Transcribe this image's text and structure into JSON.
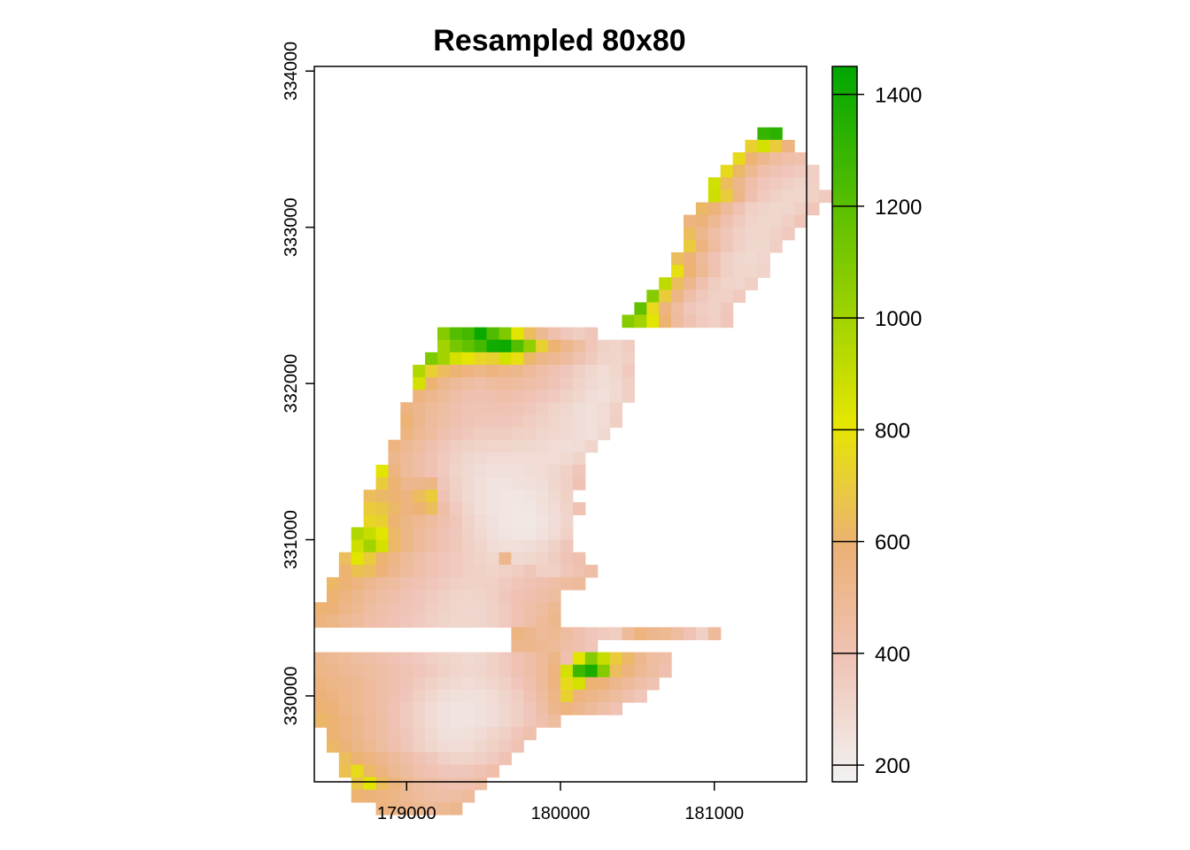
{
  "chart_data": {
    "type": "heatmap",
    "title": "Resampled 80x80",
    "xlabel": "",
    "ylabel": "",
    "xlim": [
      178400,
      181600
    ],
    "ylim": [
      329450,
      334030
    ],
    "x_ticks": [
      179000,
      180000,
      181000
    ],
    "x_tick_labels": [
      "179000",
      "180000",
      "181000"
    ],
    "y_ticks": [
      330000,
      331000,
      332000,
      333000,
      334000
    ],
    "y_tick_labels": [
      "330000",
      "331000",
      "332000",
      "333000",
      "334000"
    ],
    "cell_size": 80,
    "grid_origin": [
      178400,
      333640
    ],
    "rows": [
      {
        "c0": 36,
        "v": [
          1300,
          1330
        ]
      },
      {
        "c0": 35,
        "v": [
          720,
          860,
          700,
          560
        ]
      },
      {
        "c0": 34,
        "v": [
          760,
          600,
          520,
          460,
          430,
          420
        ]
      },
      {
        "c0": 33,
        "v": [
          760,
          620,
          500,
          430,
          400,
          380,
          360,
          340
        ]
      },
      {
        "c0": 32,
        "v": [
          870,
          640,
          520,
          430,
          380,
          360,
          340,
          320,
          340
        ]
      },
      {
        "c0": 32,
        "v": [
          880,
          700,
          540,
          420,
          360,
          330,
          310,
          300,
          330,
          360
        ]
      },
      {
        "c0": 31,
        "v": [
          620,
          580,
          480,
          400,
          340,
          320,
          300,
          310,
          340,
          380
        ]
      },
      {
        "c0": 30,
        "v": [
          560,
          580,
          500,
          420,
          360,
          320,
          300,
          310,
          340,
          380
        ]
      },
      {
        "c0": 30,
        "v": [
          640,
          520,
          440,
          380,
          340,
          310,
          310,
          330,
          360
        ]
      },
      {
        "c0": 30,
        "v": [
          700,
          560,
          460,
          380,
          330,
          300,
          300,
          340
        ]
      },
      {
        "c0": 29,
        "v": [
          640,
          580,
          480,
          400,
          340,
          300,
          290,
          310
        ]
      },
      {
        "c0": 29,
        "v": [
          780,
          600,
          500,
          410,
          340,
          310,
          300,
          320
        ]
      },
      {
        "c0": 28,
        "v": [
          920,
          640,
          520,
          420,
          350,
          320,
          310,
          340
        ]
      },
      {
        "c0": 27,
        "v": [
          1080,
          700,
          540,
          440,
          370,
          340,
          330,
          360
        ]
      },
      {
        "c0": 26,
        "v": [
          1180,
          760,
          560,
          460,
          380,
          350,
          330,
          370
        ]
      },
      {
        "c0": 25,
        "v": [
          1080,
          1000,
          820,
          600,
          470,
          400,
          360,
          340,
          380
        ]
      },
      {
        "c0": 10,
        "v": [
          1080,
          1220,
          1260,
          1420,
          1230,
          1100,
          820,
          640,
          500,
          420,
          370,
          350,
          380
        ]
      },
      {
        "c0": 10,
        "v": [
          1000,
          1120,
          1180,
          1260,
          1400,
          1410,
          1220,
          1040,
          720,
          600,
          520,
          460,
          380,
          330,
          320,
          350
        ]
      },
      {
        "c0": 9,
        "v": [
          1100,
          1000,
          860,
          800,
          740,
          720,
          860,
          780,
          620,
          540,
          500,
          460,
          410,
          360,
          320,
          310,
          340
        ]
      },
      {
        "c0": 8,
        "v": [
          960,
          720,
          640,
          600,
          560,
          540,
          560,
          540,
          520,
          480,
          440,
          410,
          380,
          340,
          300,
          280,
          300,
          360
        ]
      },
      {
        "c0": 8,
        "v": [
          860,
          600,
          520,
          480,
          460,
          440,
          460,
          470,
          460,
          440,
          420,
          390,
          360,
          320,
          290,
          270,
          290,
          340
        ]
      },
      {
        "c0": 8,
        "v": [
          560,
          520,
          480,
          440,
          420,
          410,
          420,
          430,
          420,
          400,
          380,
          360,
          330,
          300,
          270,
          260,
          290,
          340
        ]
      },
      {
        "c0": 7,
        "v": [
          560,
          520,
          480,
          450,
          420,
          400,
          390,
          400,
          400,
          390,
          370,
          350,
          320,
          300,
          270,
          260,
          280,
          330
        ]
      },
      {
        "c0": 7,
        "v": [
          600,
          520,
          470,
          440,
          410,
          390,
          380,
          380,
          380,
          370,
          350,
          330,
          310,
          290,
          270,
          260,
          280,
          340
        ]
      },
      {
        "c0": 7,
        "v": [
          560,
          500,
          460,
          420,
          390,
          370,
          350,
          350,
          350,
          340,
          330,
          310,
          300,
          290,
          270,
          260,
          290
        ]
      },
      {
        "c0": 6,
        "v": [
          560,
          500,
          460,
          420,
          380,
          350,
          330,
          320,
          310,
          310,
          300,
          300,
          290,
          280,
          270,
          280,
          310
        ]
      },
      {
        "c0": 6,
        "v": [
          520,
          480,
          440,
          400,
          360,
          330,
          300,
          290,
          280,
          280,
          280,
          280,
          280,
          280,
          290,
          320
        ]
      },
      {
        "c0": 5,
        "v": [
          820,
          560,
          480,
          440,
          400,
          360,
          320,
          290,
          270,
          260,
          260,
          260,
          270,
          280,
          300,
          330,
          380
        ]
      },
      {
        "c0": 5,
        "v": [
          700,
          600,
          520,
          520,
          540,
          380,
          330,
          290,
          260,
          240,
          240,
          250,
          260,
          270,
          300,
          340,
          400
        ]
      },
      {
        "c0": 4,
        "v": [
          640,
          620,
          600,
          560,
          640,
          700,
          400,
          340,
          290,
          260,
          240,
          230,
          230,
          240,
          260,
          290,
          330
        ]
      },
      {
        "c0": 4,
        "v": [
          700,
          680,
          620,
          560,
          600,
          640,
          440,
          360,
          300,
          260,
          240,
          230,
          220,
          230,
          250,
          280,
          320,
          400
        ]
      },
      {
        "c0": 4,
        "v": [
          740,
          720,
          600,
          540,
          500,
          460,
          420,
          380,
          320,
          280,
          250,
          230,
          220,
          220,
          240,
          270,
          310
        ]
      },
      {
        "c0": 3,
        "v": [
          960,
          900,
          820,
          620,
          540,
          480,
          440,
          400,
          370,
          330,
          290,
          260,
          240,
          230,
          230,
          250,
          280,
          330
        ]
      },
      {
        "c0": 3,
        "v": [
          880,
          1000,
          860,
          620,
          540,
          480,
          440,
          400,
          370,
          340,
          310,
          280,
          260,
          260,
          270,
          290,
          330,
          380
        ]
      },
      {
        "c0": 2,
        "v": [
          640,
          820,
          700,
          600,
          540,
          480,
          440,
          400,
          380,
          360,
          340,
          320,
          300,
          520,
          290,
          300,
          320,
          350,
          390,
          420
        ]
      },
      {
        "c0": 2,
        "v": [
          600,
          660,
          640,
          580,
          520,
          470,
          430,
          400,
          380,
          360,
          340,
          330,
          320,
          330,
          350,
          380,
          340,
          340,
          380,
          410,
          440
        ]
      },
      {
        "c0": 1,
        "v": [
          620,
          600,
          560,
          520,
          480,
          460,
          420,
          400,
          380,
          360,
          340,
          330,
          330,
          340,
          360,
          380,
          400,
          420,
          440,
          460,
          480
        ]
      },
      {
        "c0": 1,
        "v": [
          600,
          560,
          520,
          480,
          450,
          430,
          400,
          380,
          360,
          340,
          320,
          310,
          320,
          340,
          370,
          400,
          420,
          440,
          460
        ]
      },
      {
        "c0": 0,
        "v": [
          600,
          580,
          540,
          500,
          460,
          430,
          410,
          390,
          370,
          350,
          330,
          310,
          300,
          310,
          330,
          360,
          400,
          430,
          460,
          500
        ]
      },
      {
        "c0": 0,
        "v": [
          560,
          540,
          500,
          470,
          440,
          420,
          400,
          380,
          360,
          340,
          320,
          300,
          300,
          310,
          330,
          360,
          400,
          440,
          480,
          520
        ]
      },
      {
        "c0": 16,
        "v": [
          560,
          520,
          480,
          500,
          460,
          420,
          380,
          360,
          350,
          480,
          560,
          520,
          500,
          460,
          400,
          340,
          480
        ]
      },
      {
        "c0": 16,
        "v": [
          520,
          520,
          500,
          480,
          440,
          420,
          380
        ]
      },
      {
        "c0": 0,
        "v": [
          520,
          500,
          480,
          460,
          440,
          420,
          400,
          380,
          360,
          340,
          320,
          300,
          290,
          300,
          330,
          360,
          400,
          440,
          480,
          540,
          420,
          820,
          1080,
          900,
          700,
          620,
          520,
          460,
          440
        ]
      },
      {
        "c0": 0,
        "v": [
          540,
          520,
          500,
          480,
          460,
          440,
          420,
          400,
          380,
          360,
          330,
          310,
          300,
          310,
          330,
          360,
          400,
          440,
          480,
          560,
          860,
          1280,
          1380,
          1080,
          640,
          560,
          500,
          460,
          420
        ]
      },
      {
        "c0": 0,
        "v": [
          560,
          540,
          520,
          500,
          470,
          440,
          420,
          390,
          360,
          330,
          300,
          290,
          280,
          290,
          310,
          340,
          380,
          420,
          480,
          560,
          760,
          860,
          600,
          580,
          520,
          480,
          440,
          400
        ]
      },
      {
        "c0": 0,
        "v": [
          580,
          560,
          530,
          500,
          470,
          440,
          410,
          380,
          340,
          300,
          270,
          260,
          250,
          260,
          280,
          310,
          350,
          400,
          460,
          540,
          720,
          560,
          540,
          500,
          460,
          420,
          380
        ]
      },
      {
        "c0": 0,
        "v": [
          600,
          580,
          540,
          500,
          470,
          440,
          400,
          360,
          320,
          280,
          250,
          240,
          240,
          250,
          270,
          300,
          340,
          380,
          440,
          520,
          560,
          520,
          480,
          440,
          400
        ]
      },
      {
        "c0": 0,
        "v": [
          620,
          600,
          560,
          520,
          480,
          450,
          400,
          360,
          320,
          280,
          250,
          240,
          240,
          250,
          270,
          300,
          340,
          380,
          420,
          460
        ]
      },
      {
        "c0": 1,
        "v": [
          600,
          560,
          520,
          480,
          450,
          410,
          370,
          330,
          290,
          260,
          250,
          260,
          280,
          310,
          340,
          380,
          420
        ]
      },
      {
        "c0": 1,
        "v": [
          620,
          580,
          540,
          500,
          460,
          420,
          380,
          340,
          300,
          280,
          270,
          280,
          300,
          330,
          360,
          400
        ]
      },
      {
        "c0": 2,
        "v": [
          640,
          600,
          560,
          520,
          480,
          440,
          400,
          370,
          340,
          320,
          320,
          340,
          360,
          400
        ]
      },
      {
        "c0": 2,
        "v": [
          660,
          760,
          620,
          560,
          500,
          460,
          420,
          400,
          380,
          370,
          380,
          400,
          430
        ]
      },
      {
        "c0": 3,
        "v": [
          680,
          820,
          640,
          560,
          500,
          460,
          440,
          420,
          410,
          420,
          440
        ]
      },
      {
        "c0": 3,
        "v": [
          600,
          580,
          560,
          540,
          500,
          470,
          450,
          440,
          450,
          470
        ]
      },
      {
        "c0": 5,
        "v": [
          560,
          540,
          520,
          500,
          490,
          500,
          520
        ]
      }
    ],
    "legend": {
      "min": 170,
      "max": 1450,
      "ticks": [
        200,
        400,
        600,
        800,
        1000,
        1200,
        1400
      ],
      "tick_labels": [
        "200",
        "400",
        "600",
        "800",
        "1000",
        "1200",
        "1400"
      ],
      "placement": "right"
    },
    "colors": {
      "low": "#f2f2f2",
      "mid_low": "#efc2b3",
      "mid": "#ecb176",
      "mid_high": "#e6e600",
      "high": "#00a600"
    }
  }
}
